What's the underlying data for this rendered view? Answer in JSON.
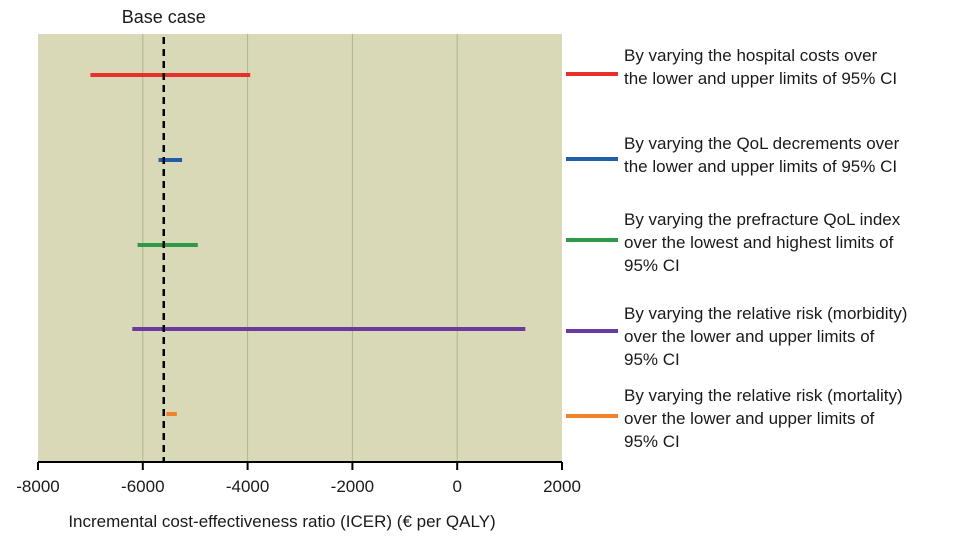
{
  "chart_data": {
    "type": "tornado",
    "annotation": "Base case",
    "base_case": -5600,
    "xlabel": "Incremental cost-effectiveness ratio (ICER) (€ per QALY)",
    "xlim": [
      -8000,
      2000
    ],
    "x_ticks": [
      "-8000",
      "-6000",
      "-4000",
      "-2000",
      "0",
      "2000"
    ],
    "grid": true,
    "legend_position": "right",
    "background_color": "#d9d9b8",
    "series": [
      {
        "name": "By varying the hospital costs over the lower and upper limits of 95% CI",
        "low": -7000,
        "high": -3950,
        "color": "#e8302a"
      },
      {
        "name": "By varying the QoL decrements over the lower and upper limits of 95% CI",
        "low": -5700,
        "high": -5250,
        "color": "#1f5fa8"
      },
      {
        "name": "By varying the prefracture QoL index over the lowest and highest limits of 95% CI",
        "low": -6100,
        "high": -4950,
        "color": "#2e9a48"
      },
      {
        "name": "By varying the relative risk (morbidity) over the lower and upper limits of 95% CI",
        "low": -6200,
        "high": 1300,
        "color": "#6a3a9e"
      },
      {
        "name": "By varying the relative risk (mortality) over the lower and upper limits of 95% CI",
        "low": -5550,
        "high": -5350,
        "color": "#f0822a"
      }
    ]
  },
  "legend": {
    "items": [
      {
        "label": "By varying the hospital costs over\nthe lower and upper limits of 95% CI"
      },
      {
        "label": "By varying the QoL decrements over\nthe lower and upper limits of 95% CI"
      },
      {
        "label": "By varying the prefracture QoL index\nover the lowest and highest limits of\n95% CI"
      },
      {
        "label": "By varying the relative risk (morbidity)\nover the lower and upper limits of\n95% CI"
      },
      {
        "label": "By varying the relative risk (mortality)\nover the lower and upper limits of\n95% CI"
      }
    ]
  }
}
